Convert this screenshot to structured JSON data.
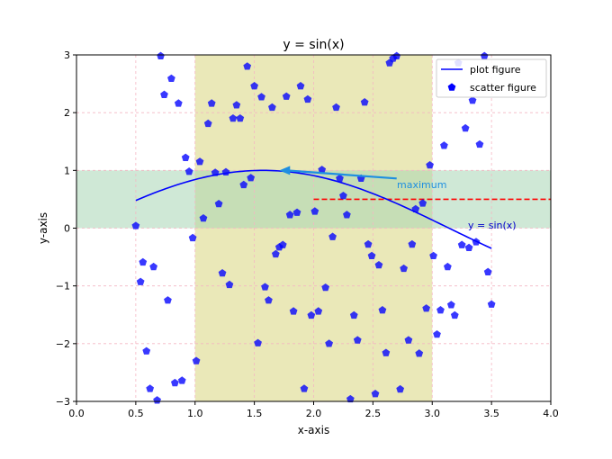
{
  "chart_data": {
    "type": "scatter",
    "title": "y = sin(x)",
    "xlabel": "x-axis",
    "ylabel": "y-axis",
    "xlim": [
      0.0,
      4.0
    ],
    "ylim": [
      -3,
      3
    ],
    "xticks": [
      "0.0",
      "0.5",
      "1.0",
      "1.5",
      "2.0",
      "2.5",
      "3.0",
      "3.5",
      "4.0"
    ],
    "yticks": [
      "−3",
      "−2",
      "−1",
      "0",
      "1",
      "2",
      "3"
    ],
    "grid": true,
    "legend_position": "upper right",
    "colors": {
      "line": "#0000ff",
      "scatter": "#0000ff",
      "hline": "#ff0000",
      "annotation": "#1f8fe0",
      "vspan": "#e3e0a0",
      "hspan": "#a8d5b5",
      "grid": "#f4b6c2"
    },
    "line_series": {
      "name": "plot figure",
      "function": "sin",
      "x_range": [
        0.5,
        3.5
      ]
    },
    "scatter_series": {
      "name": "scatter figure",
      "marker": "pentagon",
      "points": [
        [
          0.5,
          0.04
        ],
        [
          0.54,
          -0.93
        ],
        [
          0.56,
          -0.59
        ],
        [
          0.59,
          -2.13
        ],
        [
          0.62,
          -2.78
        ],
        [
          0.65,
          -0.67
        ],
        [
          0.68,
          -2.98
        ],
        [
          0.71,
          2.98
        ],
        [
          0.74,
          2.31
        ],
        [
          0.77,
          -1.25
        ],
        [
          0.8,
          2.59
        ],
        [
          0.83,
          -2.68
        ],
        [
          0.86,
          2.16
        ],
        [
          0.89,
          -2.64
        ],
        [
          0.92,
          1.22
        ],
        [
          0.95,
          0.98
        ],
        [
          0.98,
          -0.17
        ],
        [
          1.01,
          -2.3
        ],
        [
          1.04,
          1.15
        ],
        [
          1.07,
          0.17
        ],
        [
          1.11,
          1.81
        ],
        [
          1.14,
          2.16
        ],
        [
          1.17,
          0.96
        ],
        [
          1.2,
          0.42
        ],
        [
          1.23,
          -0.78
        ],
        [
          1.26,
          0.97
        ],
        [
          1.29,
          -0.98
        ],
        [
          1.32,
          1.9
        ],
        [
          1.35,
          2.13
        ],
        [
          1.38,
          1.9
        ],
        [
          1.41,
          0.75
        ],
        [
          1.44,
          2.8
        ],
        [
          1.47,
          0.87
        ],
        [
          1.5,
          2.46
        ],
        [
          1.53,
          -1.99
        ],
        [
          1.56,
          2.27
        ],
        [
          1.59,
          -1.02
        ],
        [
          1.62,
          -1.25
        ],
        [
          1.65,
          2.09
        ],
        [
          1.68,
          -0.45
        ],
        [
          1.71,
          -0.33
        ],
        [
          1.74,
          -0.29
        ],
        [
          1.77,
          2.28
        ],
        [
          1.8,
          0.23
        ],
        [
          1.83,
          -1.44
        ],
        [
          1.86,
          0.27
        ],
        [
          1.89,
          2.46
        ],
        [
          1.92,
          -2.78
        ],
        [
          1.95,
          2.23
        ],
        [
          1.98,
          -1.51
        ],
        [
          2.01,
          0.29
        ],
        [
          2.04,
          -1.44
        ],
        [
          2.07,
          1.01
        ],
        [
          2.1,
          -1.03
        ],
        [
          2.13,
          -2.0
        ],
        [
          2.16,
          -0.15
        ],
        [
          2.19,
          2.09
        ],
        [
          2.22,
          0.86
        ],
        [
          2.25,
          0.56
        ],
        [
          2.28,
          0.23
        ],
        [
          2.31,
          -2.96
        ],
        [
          2.34,
          -1.51
        ],
        [
          2.37,
          -1.94
        ],
        [
          2.4,
          0.86
        ],
        [
          2.43,
          2.18
        ],
        [
          2.46,
          -0.28
        ],
        [
          2.49,
          -0.48
        ],
        [
          2.52,
          -2.87
        ],
        [
          2.55,
          -0.64
        ],
        [
          2.58,
          -1.42
        ],
        [
          2.61,
          -2.16
        ],
        [
          2.64,
          2.86
        ],
        [
          2.67,
          2.94
        ],
        [
          2.7,
          2.98
        ],
        [
          2.73,
          -2.79
        ],
        [
          2.76,
          -0.7
        ],
        [
          2.8,
          -1.94
        ],
        [
          2.83,
          -0.28
        ],
        [
          2.86,
          0.33
        ],
        [
          2.89,
          -2.17
        ],
        [
          2.92,
          0.43
        ],
        [
          2.95,
          -1.39
        ],
        [
          2.98,
          1.09
        ],
        [
          3.01,
          -0.48
        ],
        [
          3.04,
          -1.84
        ],
        [
          3.07,
          -1.42
        ],
        [
          3.1,
          1.43
        ],
        [
          3.13,
          -0.67
        ],
        [
          3.16,
          -1.33
        ],
        [
          3.19,
          -1.51
        ],
        [
          3.22,
          2.86
        ],
        [
          3.25,
          -0.29
        ],
        [
          3.28,
          1.73
        ],
        [
          3.31,
          -0.34
        ],
        [
          3.34,
          2.21
        ],
        [
          3.37,
          -0.24
        ],
        [
          3.4,
          1.45
        ],
        [
          3.44,
          2.98
        ],
        [
          3.47,
          -0.76
        ],
        [
          3.5,
          -1.32
        ]
      ]
    },
    "vspan": [
      1.0,
      3.0
    ],
    "hspan": [
      0.0,
      1.0
    ],
    "hline": {
      "y": 0.5,
      "xmin": 2.0,
      "xmax": 4.0,
      "style": "dashed"
    },
    "annotations": [
      {
        "text": "maximum",
        "xy": [
          1.71,
          1.0
        ],
        "xytext": [
          2.7,
          0.86
        ]
      },
      {
        "text": "y = sin(x)",
        "xy": [
          3.3,
          0.0
        ]
      }
    ]
  }
}
